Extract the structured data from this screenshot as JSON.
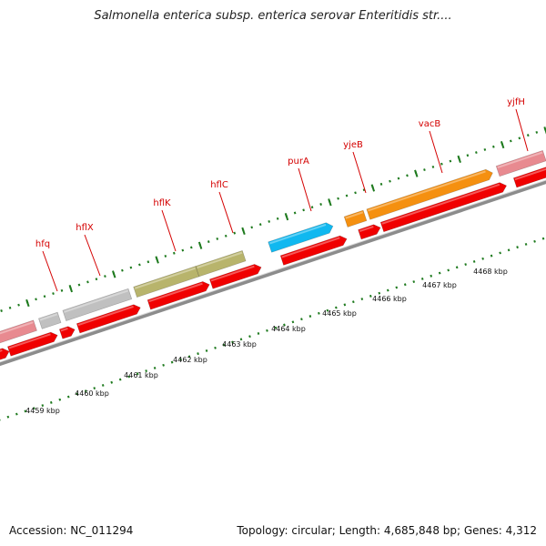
{
  "title": "Salmonella enterica subsp. enterica serovar Enteritidis str....",
  "footer": {
    "accession": "Accession: NC_011294",
    "summary": "Topology: circular; Length: 4,685,848 bp; Genes: 4,312"
  },
  "colors": {
    "backbone": "#8c8c8c",
    "tick": "#1e7a1e",
    "cds_red": "#f00000",
    "label_red": "#d40000",
    "pink": "#e88a90",
    "grey": "#c0c0c0",
    "olive": "#b8b46c",
    "cyan": "#10b8f0",
    "orange": "#f59010"
  },
  "genes": [
    {
      "name": "hfq"
    },
    {
      "name": "hflX"
    },
    {
      "name": "hflK"
    },
    {
      "name": "hflC"
    },
    {
      "name": "purA"
    },
    {
      "name": "yjeB"
    },
    {
      "name": "vacB"
    },
    {
      "name": "yjfH"
    }
  ],
  "scale": [
    {
      "label": "4459 kbp"
    },
    {
      "label": "4460 kbp"
    },
    {
      "label": "4461 kbp"
    },
    {
      "label": "4462 kbp"
    },
    {
      "label": "4463 kbp"
    },
    {
      "label": "4464 kbp"
    },
    {
      "label": "4465 kbp"
    },
    {
      "label": "4466 kbp"
    },
    {
      "label": "4467 kbp"
    },
    {
      "label": "4468 kbp"
    }
  ]
}
